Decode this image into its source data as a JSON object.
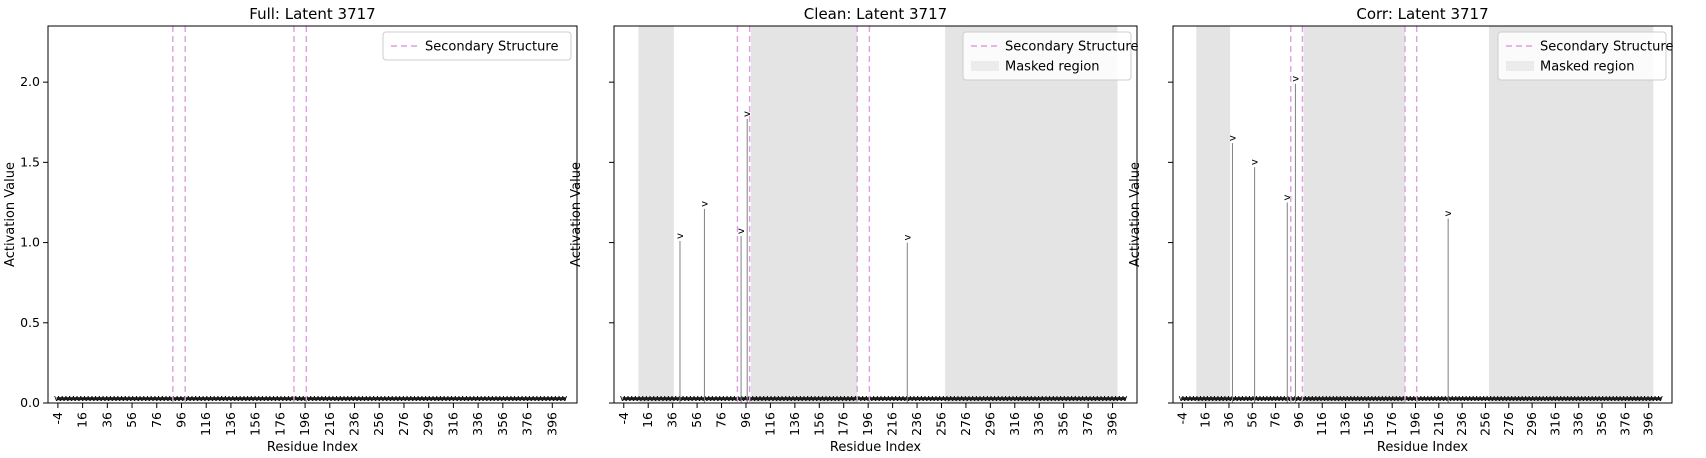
{
  "chart_data": [
    {
      "type": "bar",
      "title": "Full: Latent 3717",
      "xlabel": "Residue Index",
      "ylabel": "Activation Value",
      "ylim": [
        0,
        2.35
      ],
      "xlim": [
        -12,
        416
      ],
      "yticks": [
        "0.0",
        "0.5",
        "1.0",
        "1.5",
        "2.0"
      ],
      "xticks": [
        "-4",
        "16",
        "36",
        "56",
        "76",
        "96",
        "116",
        "136",
        "156",
        "176",
        "196",
        "216",
        "236",
        "256",
        "276",
        "296",
        "316",
        "336",
        "356",
        "376",
        "396"
      ],
      "secondary_structure_lines": [
        89,
        99,
        187,
        197
      ],
      "masked_regions": [],
      "peaks": [],
      "baseline": 0.03,
      "legend": {
        "position": "top-right",
        "entries": [
          {
            "label": "Secondary Structure",
            "style": "dashed",
            "color": "#dda0dd"
          }
        ]
      }
    },
    {
      "type": "bar",
      "title": "Clean: Latent 3717",
      "xlabel": "Residue Index",
      "ylabel": "Activation Value",
      "ylim": [
        0,
        2.35
      ],
      "xlim": [
        -12,
        416
      ],
      "yticks": [
        "0.0",
        "0.5",
        "1.0",
        "1.5",
        "2.0"
      ],
      "show_ytick_labels": false,
      "xticks": [
        "-4",
        "16",
        "36",
        "56",
        "76",
        "96",
        "116",
        "136",
        "156",
        "176",
        "196",
        "216",
        "236",
        "256",
        "276",
        "296",
        "316",
        "336",
        "356",
        "376",
        "396"
      ],
      "secondary_structure_lines": [
        89,
        99,
        187,
        197
      ],
      "masked_regions": [
        [
          8,
          37
        ],
        [
          100,
          187
        ],
        [
          259,
          400
        ]
      ],
      "peaks": [
        {
          "x": 42,
          "y": 1.01
        },
        {
          "x": 62,
          "y": 1.21
        },
        {
          "x": 92,
          "y": 1.04
        },
        {
          "x": 97,
          "y": 1.77
        },
        {
          "x": 228,
          "y": 1.0
        }
      ],
      "baseline": 0.03,
      "legend": {
        "position": "top-right",
        "entries": [
          {
            "label": "Secondary Structure",
            "style": "dashed",
            "color": "#dda0dd"
          },
          {
            "label": "Masked region",
            "style": "patch",
            "color": "#ebebeb"
          }
        ]
      }
    },
    {
      "type": "bar",
      "title": "Corr: Latent 3717",
      "xlabel": "Residue Index",
      "ylabel": "Activation Value",
      "ylim": [
        0,
        2.35
      ],
      "xlim": [
        -12,
        416
      ],
      "yticks": [
        "0.0",
        "0.5",
        "1.0",
        "1.5",
        "2.0"
      ],
      "show_ytick_labels": false,
      "xticks": [
        "-4",
        "16",
        "36",
        "56",
        "76",
        "96",
        "116",
        "136",
        "156",
        "176",
        "196",
        "216",
        "236",
        "256",
        "276",
        "296",
        "316",
        "336",
        "356",
        "376",
        "396"
      ],
      "secondary_structure_lines": [
        89,
        99,
        187,
        197
      ],
      "masked_regions": [
        [
          8,
          37
        ],
        [
          100,
          187
        ],
        [
          259,
          400
        ]
      ],
      "peaks": [
        {
          "x": 39,
          "y": 1.62
        },
        {
          "x": 58,
          "y": 1.47
        },
        {
          "x": 86,
          "y": 1.25
        },
        {
          "x": 93,
          "y": 1.99
        },
        {
          "x": 224,
          "y": 1.15
        }
      ],
      "baseline": 0.03,
      "legend": {
        "position": "top-right",
        "entries": [
          {
            "label": "Secondary Structure",
            "style": "dashed",
            "color": "#dda0dd"
          },
          {
            "label": "Masked region",
            "style": "patch",
            "color": "#ebebeb"
          }
        ]
      }
    }
  ],
  "colors": {
    "secondary_structure": "#dda0dd",
    "masked": "#e4e4e4",
    "bar": "#808080",
    "axis": "#000000"
  },
  "peak_marker": "v",
  "residue_letter_glyph": "v"
}
